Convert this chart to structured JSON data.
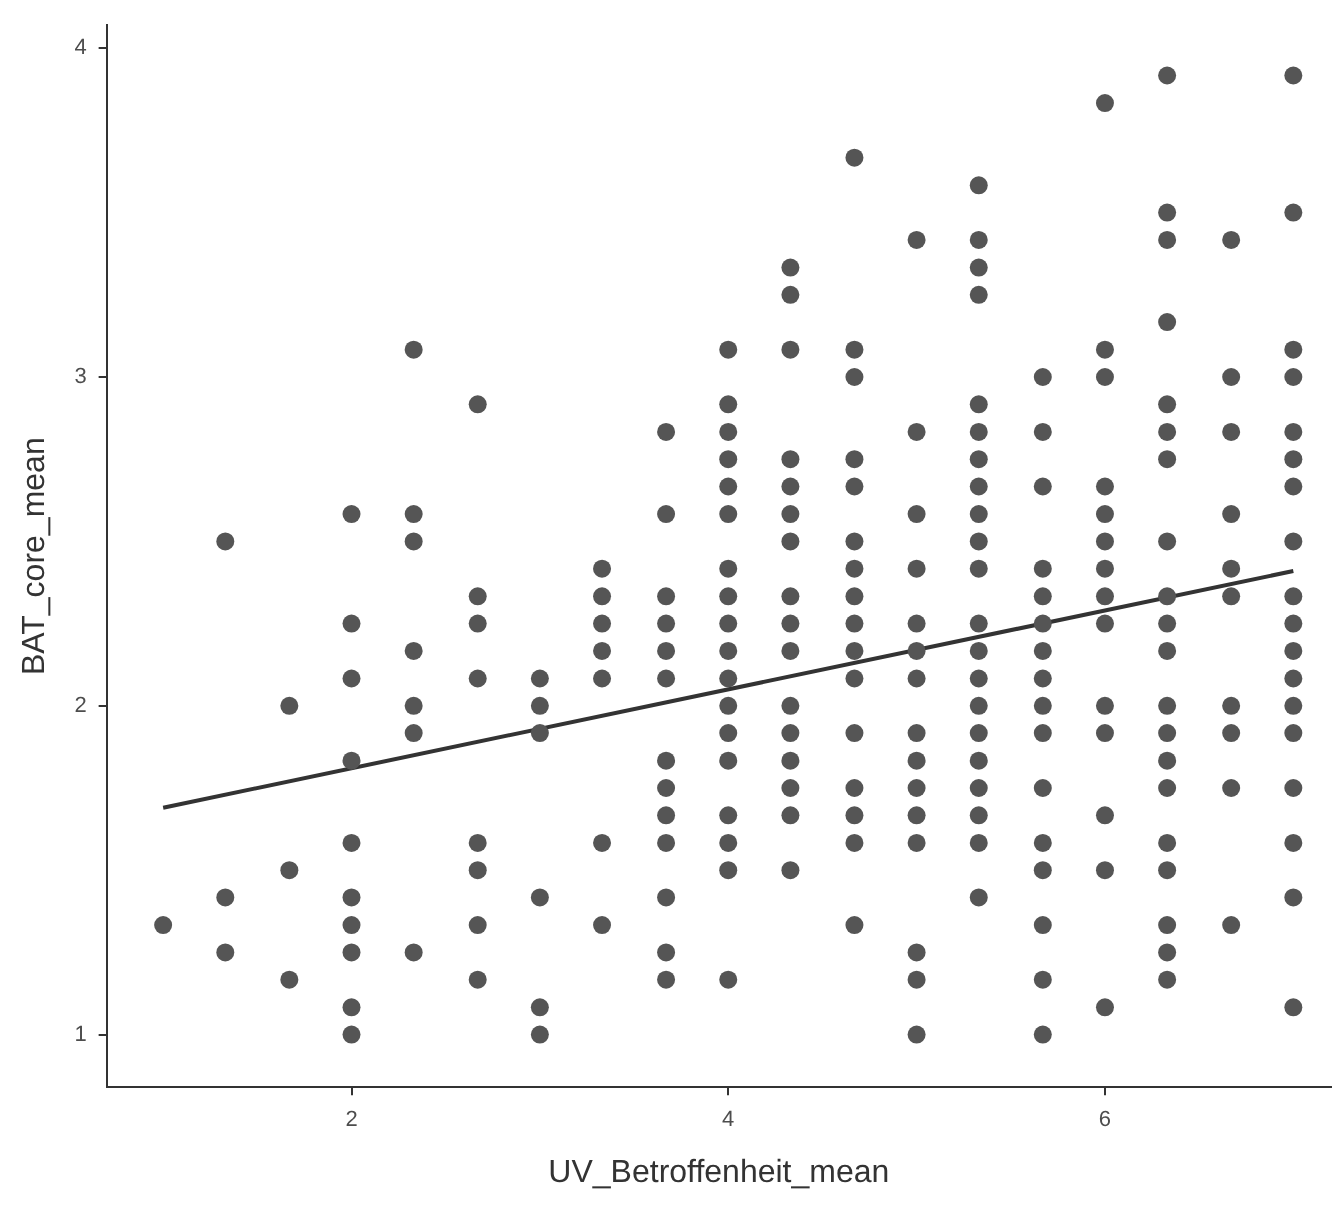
{
  "chart_data": {
    "type": "scatter",
    "xlabel": "UV_Betroffenheit_mean",
    "ylabel": "BAT_core_mean",
    "xlim": [
      0.7,
      7.2
    ],
    "xticks": [
      2,
      4,
      6
    ],
    "ylim": [
      0.84,
      4.07
    ],
    "yticks": [
      1,
      2,
      3,
      4
    ],
    "grid": false,
    "legend": false,
    "marker": "circle",
    "series": [
      {
        "color": "#555555",
        "x": [
          1,
          1.33,
          1.33,
          1.33,
          1.67,
          1.67,
          1.67,
          2,
          2,
          2,
          2,
          2,
          2,
          2,
          2,
          2,
          2,
          2.33,
          2.33,
          2.33,
          2.33,
          2.33,
          2.33,
          2.33,
          2.67,
          2.67,
          2.67,
          2.67,
          2.67,
          2.67,
          2.67,
          2.67,
          3,
          3,
          3,
          3,
          3,
          3,
          3.33,
          3.33,
          3.33,
          3.33,
          3.33,
          3.33,
          3.33,
          3.67,
          3.67,
          3.67,
          3.67,
          3.67,
          3.67,
          3.67,
          3.67,
          3.67,
          3.67,
          3.67,
          3.67,
          3.67,
          4,
          4,
          4,
          4,
          4,
          4,
          4,
          4,
          4,
          4,
          4,
          4,
          4,
          4,
          4,
          4,
          4,
          4,
          4.33,
          4.33,
          4.33,
          4.33,
          4.33,
          4.33,
          4.33,
          4.33,
          4.33,
          4.33,
          4.33,
          4.33,
          4.33,
          4.33,
          4.33,
          4.33,
          4.67,
          4.67,
          4.67,
          4.67,
          4.67,
          4.67,
          4.67,
          4.67,
          4.67,
          4.67,
          4.67,
          4.67,
          4.67,
          4.67,
          4.67,
          4.67,
          5,
          5,
          5,
          5,
          5,
          5,
          5,
          5,
          5,
          5,
          5,
          5,
          5,
          5,
          5,
          5.33,
          5.33,
          5.33,
          5.33,
          5.33,
          5.33,
          5.33,
          5.33,
          5.33,
          5.33,
          5.33,
          5.33,
          5.33,
          5.33,
          5.33,
          5.33,
          5.33,
          5.33,
          5.33,
          5.33,
          5.33,
          5.67,
          5.67,
          5.67,
          5.67,
          5.67,
          5.67,
          5.67,
          5.67,
          5.67,
          5.67,
          5.67,
          5.67,
          5.67,
          5.67,
          5.67,
          5.67,
          6,
          6,
          6,
          6,
          6,
          6,
          6,
          6,
          6,
          6,
          6,
          6,
          6,
          6,
          6.33,
          6.33,
          6.33,
          6.33,
          6.33,
          6.33,
          6.33,
          6.33,
          6.33,
          6.33,
          6.33,
          6.33,
          6.33,
          6.33,
          6.33,
          6.33,
          6.33,
          6.33,
          6.33,
          6.33,
          6.67,
          6.67,
          6.67,
          6.67,
          6.67,
          6.67,
          6.67,
          6.67,
          6.67,
          6.67,
          7,
          7,
          7,
          7,
          7,
          7,
          7,
          7,
          7,
          7,
          7,
          7,
          7,
          7,
          7,
          7,
          7,
          7
        ],
        "values": [
          1.333,
          2.5,
          1.417,
          1.25,
          2,
          1.5,
          1.167,
          2.583,
          2.25,
          2.083,
          1.833,
          1.583,
          1.417,
          1.333,
          1.25,
          1.083,
          1,
          3.083,
          2.583,
          2.5,
          2.167,
          2,
          1.917,
          1.25,
          2.917,
          2.333,
          2.25,
          2.083,
          1.583,
          1.5,
          1.333,
          1.167,
          2.083,
          2,
          1.917,
          1.417,
          1.083,
          1,
          2.417,
          2.333,
          2.25,
          2.167,
          2.083,
          1.583,
          1.333,
          2.833,
          2.583,
          2.333,
          2.25,
          2.167,
          2.083,
          1.833,
          1.75,
          1.667,
          1.583,
          1.417,
          1.25,
          1.167,
          3.083,
          2.917,
          2.833,
          2.75,
          2.667,
          2.583,
          2.417,
          2.333,
          2.25,
          2.167,
          2.083,
          2,
          1.917,
          1.833,
          1.667,
          1.583,
          1.5,
          1.167,
          3.333,
          3.25,
          3.083,
          2.75,
          2.667,
          2.583,
          2.5,
          2.333,
          2.25,
          2.167,
          2,
          1.917,
          1.833,
          1.75,
          1.667,
          1.5,
          3.667,
          3.083,
          3,
          2.75,
          2.667,
          2.5,
          2.417,
          2.333,
          2.25,
          2.167,
          2.083,
          1.917,
          1.75,
          1.667,
          1.583,
          1.333,
          3.417,
          2.833,
          2.583,
          2.417,
          2.25,
          2.167,
          2.083,
          1.917,
          1.833,
          1.75,
          1.667,
          1.583,
          1.25,
          1.167,
          1,
          3.583,
          3.417,
          3.333,
          3.25,
          2.917,
          2.833,
          2.75,
          2.667,
          2.583,
          2.5,
          2.417,
          2.25,
          2.167,
          2.083,
          2,
          1.917,
          1.833,
          1.75,
          1.667,
          1.583,
          1.417,
          3,
          2.833,
          2.667,
          2.417,
          2.333,
          2.25,
          2.167,
          2.083,
          2,
          1.917,
          1.75,
          1.583,
          1.5,
          1.333,
          1.167,
          1,
          3.833,
          3.083,
          3,
          2.667,
          2.583,
          2.5,
          2.417,
          2.333,
          2.25,
          2,
          1.917,
          1.667,
          1.5,
          1.083,
          3.917,
          3.5,
          3.417,
          3.167,
          2.917,
          2.833,
          2.75,
          2.5,
          2.333,
          2.25,
          2.167,
          2,
          1.917,
          1.833,
          1.75,
          1.583,
          1.5,
          1.333,
          1.25,
          1.167,
          3.417,
          3,
          2.833,
          2.583,
          2.417,
          2.333,
          2,
          1.917,
          1.75,
          1.333,
          3.917,
          3.5,
          3.083,
          3,
          2.833,
          2.75,
          2.667,
          2.5,
          2.333,
          2.25,
          2.167,
          2.083,
          2,
          1.917,
          1.75,
          1.583,
          1.417,
          1.083
        ]
      },
      {
        "type": "line",
        "color": "#333333",
        "x": [
          1,
          7
        ],
        "values": [
          1.69,
          2.41
        ],
        "marker": "none"
      }
    ]
  }
}
